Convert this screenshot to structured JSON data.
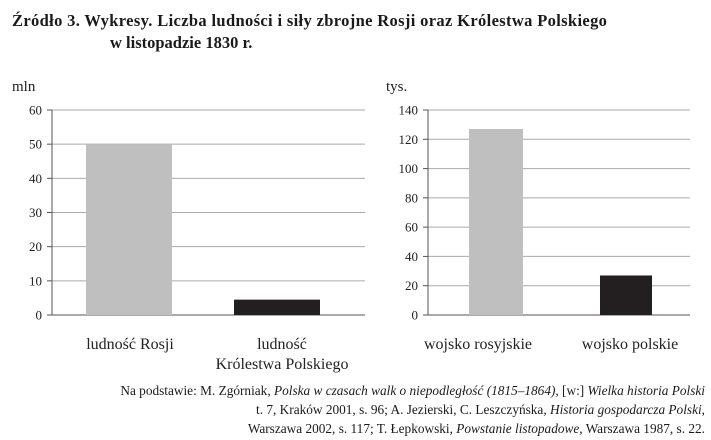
{
  "title": {
    "line1": "Źródło 3. Wykresy. Liczba ludności i siły zbrojne Rosji oraz Królestwa Polskiego",
    "line2": "w listopadzie 1830 r."
  },
  "colors": {
    "grid": "#aaaaaa",
    "axis": "#555555",
    "light_bar": "#bfbfbf",
    "dark_bar": "#231f20"
  },
  "chart_data": [
    {
      "type": "bar",
      "unit_label": "mln",
      "categories": [
        [
          "ludność Rosji"
        ],
        [
          "ludność",
          "Królestwa Polskiego"
        ]
      ],
      "values": [
        50,
        4.5
      ],
      "bar_colors": [
        "#bfbfbf",
        "#231f20"
      ],
      "ylim": [
        0,
        60
      ],
      "yticks": [
        "0",
        "10",
        "20",
        "30",
        "40",
        "50",
        "60"
      ],
      "grid": true
    },
    {
      "type": "bar",
      "unit_label": "tys.",
      "categories": [
        [
          "wojsko rosyjskie"
        ],
        [
          "wojsko polskie"
        ]
      ],
      "values": [
        127,
        27
      ],
      "bar_colors": [
        "#bfbfbf",
        "#231f20"
      ],
      "ylim": [
        0,
        140
      ],
      "yticks": [
        "0",
        "20",
        "40",
        "60",
        "80",
        "100",
        "120",
        "140"
      ],
      "grid": true
    }
  ],
  "source": {
    "line1": {
      "a": "Na podstawie",
      "b": ": M. Zgórniak, ",
      "c": "Polska w czasach walk o niepodległość (1815–1864)",
      "d": ", [w:] ",
      "e": "Wielka historia Polski"
    },
    "line2": {
      "a": "t. 7, Kraków 2001, s. 96; A. Jezierski, C. Leszczyńska, ",
      "b": "Historia gospodarcza Polski",
      "c": ","
    },
    "line3": {
      "a": "Warszawa 2002, s. 117; T. Łepkowski, ",
      "b": "Powstanie listopadowe",
      "c": ", Warszawa 1987, s. 22."
    }
  }
}
